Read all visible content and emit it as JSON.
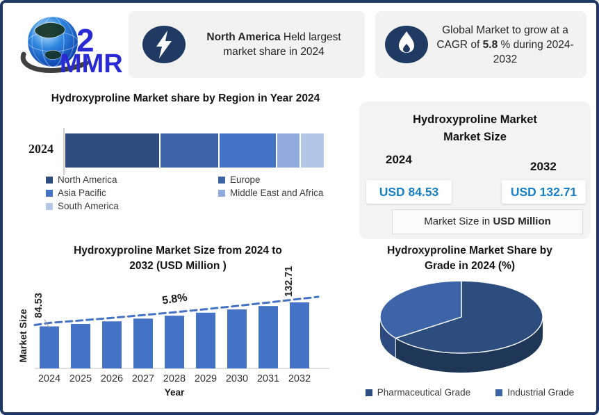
{
  "logo": {
    "brand": "MMR"
  },
  "callouts": [
    {
      "icon": "lightning-icon",
      "bold": "North America",
      "rest": " Held largest market share in 2024"
    },
    {
      "icon": "flame-icon",
      "pre": "Global Market to grow at a CAGR of ",
      "bold": "5.8",
      "post": " % during 2024-2032"
    }
  ],
  "infobox": {
    "title_line1": "Hydroxyproline Market",
    "title_line2": "Market Size",
    "year_left": "2024",
    "year_right": "2032",
    "value_left": "USD 84.53",
    "value_right": "USD 132.71",
    "note_pre": "Market Size in ",
    "note_bold": "USD Million"
  },
  "colors": {
    "navy": "#1F3864",
    "callout_bg": "#F2F2F2",
    "bar_fill": "#4472C4",
    "trend": "#4472C4",
    "usd_blue": "#1580C6",
    "axis_gray": "#BFBFBF"
  },
  "chart_data": [
    {
      "type": "bar",
      "variant": "horizontal-stacked",
      "title": "Hydroxyproline Market share by Region in Year 2024",
      "categories": [
        "2024"
      ],
      "values_estimated": true,
      "series": [
        {
          "name": "North America",
          "color": "#2E4D7E",
          "value": 36.5
        },
        {
          "name": "Europe",
          "color": "#3B63A5",
          "value": 22.5
        },
        {
          "name": "Asia Pacific",
          "color": "#4472C4",
          "value": 22
        },
        {
          "name": "Middle East and Africa",
          "color": "#8FAADC",
          "value": 8.5
        },
        {
          "name": "South America",
          "color": "#B4C7E7",
          "value": 9
        }
      ],
      "legend_position": "bottom",
      "data_labels": "none"
    },
    {
      "type": "bar",
      "title_line1": "Hydroxyproline Market Size from 2024 to",
      "title_line2": "2032 (USD Million )",
      "x": [
        "2024",
        "2025",
        "2026",
        "2027",
        "2028",
        "2029",
        "2030",
        "2031",
        "2032"
      ],
      "values": [
        84.53,
        89.43,
        94.62,
        100.11,
        105.92,
        112.06,
        118.56,
        125.43,
        132.71
      ],
      "shown_labels": {
        "first": "84.53",
        "last": "132.71"
      },
      "values_note": "only first and last bars labeled; intermediate values interpolated at 5.8% CAGR",
      "cagr_annotation": "5.8%",
      "xlabel": "Year",
      "ylabel": "Market Size",
      "ylim": [
        0,
        140
      ],
      "trendline": "dashed",
      "grid": false
    },
    {
      "type": "pie",
      "title_line1": "Hydroxyproline Market Share by",
      "title_line2": "Grade in  2024 (%)",
      "values_estimated": true,
      "slices": [
        {
          "label": "Pharmaceutical Grade",
          "value": 65,
          "color": "#2C4D7E",
          "side_color": "#1E3757"
        },
        {
          "label": "Industrial Grade",
          "value": 35,
          "color": "#3E64A8",
          "side_color": "#2D4A80"
        }
      ],
      "legend_position": "bottom",
      "data_labels": "none"
    }
  ]
}
